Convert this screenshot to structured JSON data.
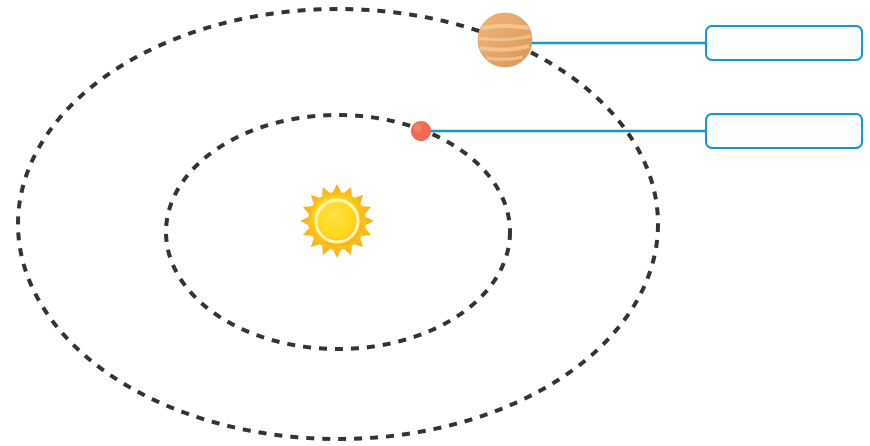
{
  "diagram": {
    "labels": [
      {
        "text": ""
      },
      {
        "text": ""
      }
    ]
  },
  "colors": {
    "orbit": "#333333",
    "leader_line": "#1597d3",
    "label_border": "#1597d3",
    "sun_rays": "#f6b81a",
    "sun_core": "#ffd81f",
    "outer_planet": "#e7a96b",
    "outer_planet_bands": "#f4c895",
    "inner_planet": "#ef6a50"
  },
  "icons": {
    "sun": "sun-icon",
    "outer_planet": "banded-planet-icon",
    "inner_planet": "small-red-planet-icon"
  }
}
